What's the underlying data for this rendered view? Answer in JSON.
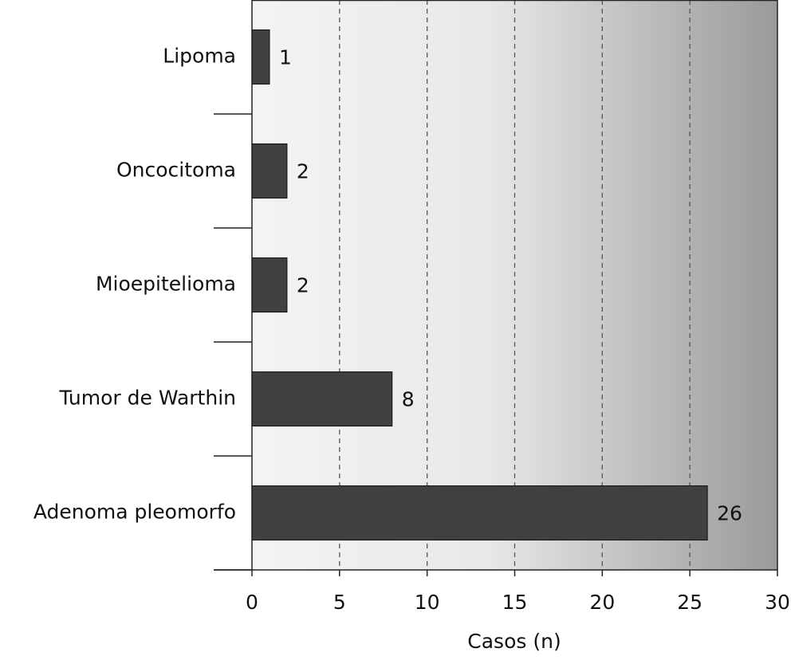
{
  "chart_data": {
    "type": "hbar",
    "categories": [
      "Lipoma",
      "Oncocitoma",
      "Mioepitelioma",
      "Tumor de Warthin",
      "Adenoma pleomorfo"
    ],
    "values": [
      1,
      2,
      2,
      8,
      26
    ],
    "color": "#404040",
    "xlabel": "Casos (n)",
    "xlim": [
      0,
      30
    ],
    "xticks": [
      0,
      5,
      10,
      15,
      20,
      25,
      30
    ],
    "grid": true
  }
}
